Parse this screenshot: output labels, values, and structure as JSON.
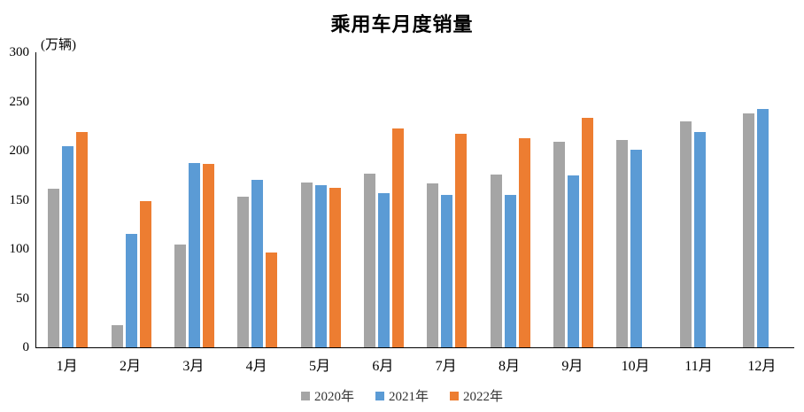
{
  "chart_data": {
    "type": "bar",
    "title": "乘用车月度销量",
    "unit_label": "(万辆)",
    "categories": [
      "1月",
      "2月",
      "3月",
      "4月",
      "5月",
      "6月",
      "7月",
      "8月",
      "9月",
      "10月",
      "11月",
      "12月"
    ],
    "series": [
      {
        "name": "2020年",
        "color": "#A5A5A5",
        "values": [
          161.4,
          22.4,
          104.5,
          153.6,
          167.4,
          176.4,
          166.5,
          175.3,
          208.8,
          211.0,
          229.7,
          237.5
        ]
      },
      {
        "name": "2021年",
        "color": "#5B9BD5",
        "values": [
          204.5,
          115.5,
          187.4,
          170.4,
          164.6,
          156.9,
          155.1,
          155.2,
          175.1,
          200.7,
          219.2,
          242.2
        ]
      },
      {
        "name": "2022年",
        "color": "#ED7D31",
        "values": [
          218.6,
          148.7,
          186.4,
          96.5,
          162.3,
          222.2,
          217.4,
          212.5,
          233.2,
          null,
          null,
          null
        ]
      }
    ],
    "xlabel": "",
    "ylabel": "",
    "ylim": [
      0,
      300
    ],
    "yticks": [
      0,
      50,
      100,
      150,
      200,
      250,
      300
    ],
    "grid": false,
    "legend_position": "bottom",
    "axis_color": "#000000"
  }
}
